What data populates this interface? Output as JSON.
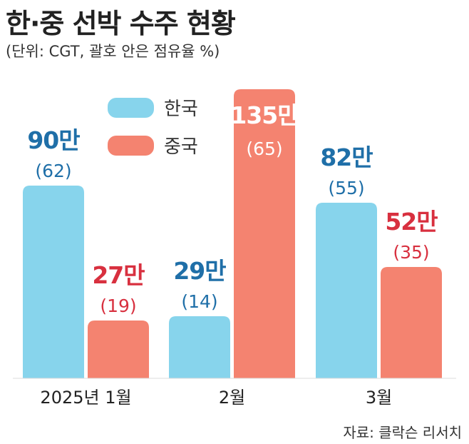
{
  "title": "한·중 선박 수주 현황",
  "subtitle": "(단위: CGT, 괄호 안은 점유율 %)",
  "source": "자료: 클락슨 리서치",
  "colors": {
    "korea": "#87D4EC",
    "china": "#F48370",
    "korea_label": "#1F6FA8",
    "china_label": "#D8303F"
  },
  "chart_data": {
    "type": "bar",
    "categories": [
      "2025년 1월",
      "2월",
      "3월"
    ],
    "series": [
      {
        "name": "한국",
        "values": [
          900000,
          290000,
          820000
        ],
        "labels": [
          "90만",
          "29만",
          "82만"
        ],
        "shares": [
          "(62)",
          "(14)",
          "(55)"
        ]
      },
      {
        "name": "중국",
        "values": [
          270000,
          1350000,
          520000
        ],
        "labels": [
          "27만",
          "135만",
          "52만"
        ],
        "shares": [
          "(19)",
          "(65)",
          "(35)"
        ]
      }
    ],
    "legend": "top-center",
    "grid": false,
    "ylim": [
      0,
      1400000
    ]
  }
}
